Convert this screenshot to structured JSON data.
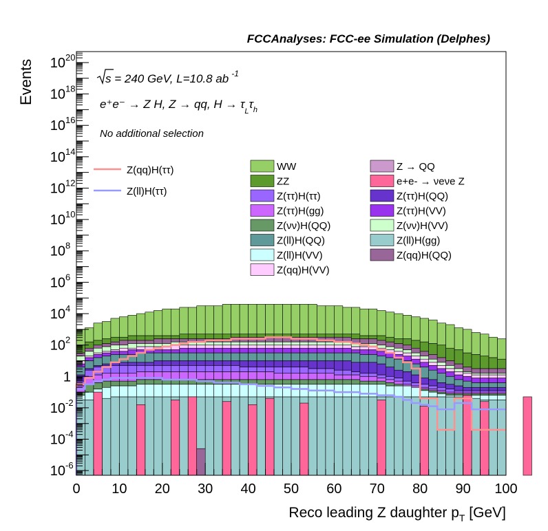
{
  "header": {
    "title": "FCCAnalyses: FCC-ee Simulation (Delphes)"
  },
  "annotations": {
    "sqrt_s": "s",
    "energy_lumi": " = 240 GeV, L=10.8 ab",
    "lumi_exp": "-1",
    "process": "e⁺e⁻ → Z H, Z → qq, H → τ",
    "process_sub_L": "L",
    "process_tau2": "τ",
    "process_sub_h": "h",
    "selection": "No additional selection"
  },
  "chart_data": {
    "type": "bar",
    "xlabel": "Reco leading Z daughter p",
    "xlabel_sub": "T",
    "xlabel_unit": " [GeV]",
    "ylabel": "Events",
    "xlim": [
      0,
      100
    ],
    "ylim_log10": [
      -6.3,
      20.7
    ],
    "yscale": "log",
    "x_ticks": [
      "0",
      "10",
      "20",
      "30",
      "40",
      "50",
      "60",
      "70",
      "80",
      "90",
      "100"
    ],
    "y_tick_labels": [
      {
        "base": "10",
        "exp": "-6",
        "value": -6
      },
      {
        "base": "10",
        "exp": "-4",
        "value": -4
      },
      {
        "base": "10",
        "exp": "-2",
        "value": -2
      },
      {
        "base": "1",
        "exp": "",
        "value": 0
      },
      {
        "base": "10",
        "exp": "2",
        "value": 2
      },
      {
        "base": "10",
        "exp": "4",
        "value": 4
      },
      {
        "base": "10",
        "exp": "6",
        "value": 6
      },
      {
        "base": "10",
        "exp": "8",
        "value": 8
      },
      {
        "base": "10",
        "exp": "10",
        "value": 10
      },
      {
        "base": "10",
        "exp": "12",
        "value": 12
      },
      {
        "base": "10",
        "exp": "14",
        "value": 14
      },
      {
        "base": "10",
        "exp": "16",
        "value": 16
      },
      {
        "base": "10",
        "exp": "18",
        "value": 18
      },
      {
        "base": "10",
        "exp": "20",
        "value": 20
      }
    ],
    "bin_width": 2,
    "stacked_log10_boundaries": {
      "Z(ll)H(gg)": [
        -1.5,
        -1.5,
        -1.4,
        -1.4,
        -1.3,
        -1.3,
        -1.3,
        -1.3,
        -1.3,
        -1.3,
        -1.3,
        -1.3,
        -1.3,
        -1.3,
        -1.3,
        -1.3,
        -1.3,
        -1.3,
        -1.3,
        -1.3,
        -1.3,
        -1.3,
        -1.3,
        -1.3,
        -1.3,
        -1.3,
        -1.3,
        -1.3,
        -1.3,
        -1.3,
        -1.3,
        -1.3,
        -1.3,
        -1.3,
        -1.3,
        -1.3,
        -1.3,
        -1.3,
        -1.3,
        -1.3,
        -1.3,
        -1.3,
        -1.3,
        -1.3,
        -1.3,
        -1.4,
        -1.4,
        -1.5,
        -1.5,
        -1.5
      ],
      "Z(ll)H(VV)": [
        -1.2,
        -1.0,
        -0.8,
        -0.7,
        -0.6,
        -0.6,
        -0.6,
        -0.5,
        -0.5,
        -0.5,
        -0.5,
        -0.5,
        -0.5,
        -0.5,
        -0.5,
        -0.5,
        -0.5,
        -0.5,
        -0.5,
        -0.5,
        -0.5,
        -0.5,
        -0.5,
        -0.5,
        -0.5,
        -0.5,
        -0.5,
        -0.5,
        -0.5,
        -0.5,
        -0.5,
        -0.5,
        -0.5,
        -0.5,
        -0.5,
        -0.5,
        -0.6,
        -0.6,
        -0.6,
        -0.7,
        -0.9,
        -1.0,
        -1.1,
        -1.2,
        -1.2,
        -1.2,
        -1.2,
        -1.2,
        -1.2,
        -1.2
      ],
      "Z(νν)H(QQ)": [
        -1.0,
        -0.5,
        -0.4,
        -0.3,
        -0.3,
        -0.3,
        -0.3,
        -0.2,
        -0.2,
        -0.2,
        -0.2,
        -0.2,
        -0.2,
        -0.2,
        -0.2,
        -0.2,
        -0.2,
        -0.2,
        -0.2,
        -0.2,
        -0.2,
        -0.2,
        -0.2,
        -0.2,
        -0.2,
        -0.2,
        -0.2,
        -0.2,
        -0.2,
        -0.2,
        -0.2,
        -0.2,
        -0.2,
        -0.3,
        -0.3,
        -0.3,
        -0.4,
        -0.5,
        -0.6,
        -0.7,
        -0.8,
        -0.9,
        -1.0,
        -1.1,
        -1.1,
        -1.1,
        -1.1,
        -1.1,
        -1.1,
        -1.1
      ],
      "Z(ττ)H(gg)": [
        -0.6,
        0.0,
        0.1,
        0.2,
        0.2,
        0.2,
        0.2,
        0.3,
        0.3,
        0.3,
        0.3,
        0.3,
        0.3,
        0.3,
        0.3,
        0.3,
        0.3,
        0.3,
        0.3,
        0.3,
        0.3,
        0.3,
        0.3,
        0.2,
        0.2,
        0.2,
        0.2,
        0.2,
        0.2,
        0.2,
        0.1,
        0.1,
        0.1,
        0.0,
        0.0,
        -0.1,
        -0.2,
        -0.3,
        -0.5,
        -0.6,
        -0.7,
        -0.8,
        -0.9,
        -1.0,
        -1.0,
        -1.0,
        -1.0,
        -1.0,
        -1.0,
        -1.0
      ],
      "Z(ττ)H(ττ)": [
        -0.3,
        0.4,
        0.6,
        0.7,
        0.7,
        0.7,
        0.7,
        0.7,
        0.7,
        0.7,
        0.7,
        0.7,
        0.7,
        0.7,
        0.7,
        0.7,
        0.7,
        0.7,
        0.7,
        0.6,
        0.6,
        0.6,
        0.6,
        0.6,
        0.6,
        0.6,
        0.6,
        0.5,
        0.5,
        0.5,
        0.4,
        0.4,
        0.3,
        0.2,
        0.2,
        0.1,
        0.0,
        -0.1,
        -0.3,
        -0.4,
        -0.5,
        -0.6,
        -0.7,
        -0.8,
        -0.9,
        -0.9,
        -0.9,
        -0.9,
        -0.9,
        -0.9
      ],
      "Z(ττ)H(QQ)": [
        0.1,
        0.5,
        0.7,
        0.8,
        0.9,
        0.9,
        0.9,
        0.9,
        0.9,
        1.0,
        1.0,
        1.0,
        1.0,
        1.0,
        1.0,
        1.0,
        1.0,
        1.0,
        1.0,
        1.0,
        1.0,
        1.0,
        1.0,
        1.0,
        1.0,
        1.0,
        1.0,
        1.0,
        1.0,
        1.0,
        1.0,
        1.0,
        0.9,
        0.9,
        0.9,
        0.8,
        0.6,
        0.4,
        0.3,
        0.1,
        -0.1,
        -0.2,
        -0.4,
        -0.5,
        -0.6,
        -0.7,
        -0.7,
        -0.7,
        -0.7,
        -0.7
      ],
      "Z(ll)H(QQ)": [
        0.6,
        1.0,
        1.2,
        1.3,
        1.4,
        1.4,
        1.4,
        1.5,
        1.5,
        1.5,
        1.5,
        1.5,
        1.5,
        1.5,
        1.5,
        1.5,
        1.5,
        1.5,
        1.5,
        1.5,
        1.5,
        1.5,
        1.5,
        1.5,
        1.5,
        1.5,
        1.5,
        1.5,
        1.5,
        1.5,
        1.5,
        1.5,
        1.5,
        1.4,
        1.4,
        1.3,
        1.2,
        1.1,
        1.0,
        0.8,
        0.6,
        0.4,
        0.2,
        0.0,
        -0.2,
        -0.3,
        -0.4,
        -0.4,
        -0.4,
        -0.4
      ],
      "Z(ττ)H(VV)": [
        0.8,
        1.2,
        1.4,
        1.5,
        1.6,
        1.6,
        1.7,
        1.7,
        1.7,
        1.7,
        1.7,
        1.7,
        1.8,
        1.8,
        1.8,
        1.8,
        1.8,
        1.8,
        1.8,
        1.8,
        1.8,
        1.8,
        1.8,
        1.8,
        1.8,
        1.8,
        1.8,
        1.8,
        1.8,
        1.8,
        1.8,
        1.8,
        1.7,
        1.7,
        1.7,
        1.6,
        1.5,
        1.4,
        1.3,
        1.1,
        0.9,
        0.7,
        0.5,
        0.3,
        0.1,
        0.0,
        -0.1,
        -0.1,
        -0.1,
        -0.1
      ],
      "Z(qq)H(VV)": [
        1.0,
        1.3,
        1.5,
        1.6,
        1.7,
        1.8,
        1.8,
        1.9,
        1.9,
        1.9,
        1.9,
        2.0,
        2.0,
        2.0,
        2.0,
        2.0,
        2.0,
        2.0,
        2.0,
        2.0,
        2.0,
        2.0,
        2.0,
        2.0,
        2.0,
        2.0,
        2.0,
        2.0,
        2.0,
        2.0,
        2.0,
        2.0,
        1.9,
        1.9,
        1.9,
        1.8,
        1.7,
        1.6,
        1.5,
        1.3,
        1.1,
        0.9,
        0.7,
        0.5,
        0.3,
        0.2,
        0.1,
        0.1,
        0.1,
        0.1
      ],
      "Z(νν)H(VV)": [
        1.3,
        1.6,
        1.8,
        1.9,
        2.0,
        2.0,
        2.1,
        2.1,
        2.1,
        2.1,
        2.1,
        2.2,
        2.2,
        2.2,
        2.2,
        2.2,
        2.2,
        2.2,
        2.2,
        2.2,
        2.2,
        2.2,
        2.2,
        2.2,
        2.2,
        2.2,
        2.2,
        2.2,
        2.2,
        2.2,
        2.2,
        2.2,
        2.1,
        2.1,
        2.1,
        2.0,
        1.9,
        1.8,
        1.7,
        1.5,
        1.3,
        1.1,
        0.9,
        0.7,
        0.5,
        0.3,
        0.2,
        0.2,
        0.2,
        0.2
      ],
      "Z(qq)H(QQ)": [
        1.5,
        1.8,
        2.0,
        2.1,
        2.2,
        2.3,
        2.3,
        2.3,
        2.3,
        2.4,
        2.4,
        2.4,
        2.4,
        2.4,
        2.4,
        2.4,
        2.4,
        2.4,
        2.5,
        2.5,
        2.5,
        2.5,
        2.5,
        2.5,
        2.5,
        2.5,
        2.5,
        2.5,
        2.5,
        2.5,
        2.5,
        2.5,
        2.4,
        2.4,
        2.4,
        2.3,
        2.2,
        2.1,
        2.0,
        1.8,
        1.6,
        1.4,
        1.2,
        1.0,
        0.8,
        0.6,
        0.5,
        0.5,
        0.5,
        0.5
      ],
      "ZZ": [
        2.0,
        2.2,
        2.3,
        2.4,
        2.5,
        2.5,
        2.6,
        2.6,
        2.6,
        2.6,
        2.6,
        2.6,
        2.7,
        2.7,
        2.7,
        2.7,
        2.7,
        2.7,
        2.7,
        2.7,
        2.7,
        2.7,
        2.7,
        2.7,
        2.7,
        2.7,
        2.7,
        2.7,
        2.7,
        2.7,
        2.7,
        2.7,
        2.7,
        2.6,
        2.6,
        2.6,
        2.5,
        2.4,
        2.4,
        2.3,
        2.2,
        2.1,
        2.0,
        1.8,
        1.7,
        1.5,
        1.4,
        1.3,
        1.2,
        1.1
      ],
      "WW": [
        3.0,
        3.1,
        3.4,
        3.5,
        3.7,
        3.8,
        3.9,
        4.0,
        4.1,
        4.2,
        4.3,
        4.3,
        4.4,
        4.4,
        4.5,
        4.5,
        4.5,
        4.6,
        4.6,
        4.6,
        4.6,
        4.6,
        4.6,
        4.6,
        4.6,
        4.6,
        4.6,
        4.6,
        4.5,
        4.5,
        4.5,
        4.4,
        4.4,
        4.3,
        4.3,
        4.2,
        4.1,
        4.0,
        3.9,
        3.8,
        3.7,
        3.6,
        3.4,
        3.3,
        3.1,
        3.0,
        2.8,
        2.7,
        2.5,
        2.4
      ]
    },
    "spiky_series": {
      "e+e- → νeνe Z": {
        "bins": [
          2,
          7,
          11,
          13,
          17,
          20,
          22,
          26,
          35,
          40,
          45,
          47,
          52,
          57,
          60,
          62,
          70,
          71,
          74,
          76,
          79
        ],
        "log10": [
          -1,
          -1.8,
          -1.5,
          -1.3,
          -1.6,
          -1.8,
          -1.4,
          -1.7,
          -1.5,
          -1.9,
          -1.2,
          -1.6,
          -1.3,
          -1.7,
          -1.5,
          -1.8,
          -1.9,
          -1.4,
          -1.6,
          -1.7,
          -2
        ]
      },
      "Z(qq)H(QQ) small": {
        "bins": [
          14
        ],
        "log10": [
          -4.6
        ]
      }
    },
    "overlay_series": [
      {
        "name": "Z(qq)H(ττ)",
        "color": "#ff9090",
        "log10": [
          -0.5,
          -0.1,
          0.3,
          0.6,
          0.9,
          1.1,
          1.3,
          1.5,
          1.7,
          1.8,
          1.9,
          2.0,
          2.1,
          2.2,
          2.2,
          2.3,
          2.3,
          2.3,
          2.4,
          2.4,
          2.4,
          2.4,
          2.5,
          2.5,
          2.5,
          2.4,
          2.4,
          2.4,
          2.3,
          2.3,
          2.2,
          2.2,
          2.1,
          2.0,
          1.9,
          1.7,
          1.5,
          1.2,
          0.9,
          0.5,
          -1.4,
          -1.4,
          -3.4,
          -3.4,
          -1.4,
          -1.4,
          -3.4,
          -3.4,
          -3.4,
          -3.4
        ]
      },
      {
        "name": "Z(ll)H(ττ)",
        "color": "#9999ff",
        "log10": [
          -0.8,
          -0.5,
          -0.3,
          -0.2,
          -0.1,
          -0.1,
          -0.1,
          -0.1,
          -0.1,
          -0.1,
          -0.2,
          -0.2,
          -0.2,
          -0.2,
          -0.3,
          -0.3,
          -0.4,
          -0.4,
          -0.4,
          -0.5,
          -0.5,
          -0.6,
          -0.6,
          -0.7,
          -0.7,
          -0.8,
          -0.8,
          -0.9,
          -0.9,
          -0.9,
          -1.0,
          -1.0,
          -1.0,
          -1.1,
          -1.1,
          -1.2,
          -1.2,
          -1.3,
          -1.5,
          -1.7,
          -1.8,
          -1.9,
          -2.1,
          -2.1,
          -1.7,
          -1.7,
          -2.1,
          -2.1,
          -2.1,
          -2.1
        ]
      }
    ],
    "legend": {
      "overlay": [
        {
          "label": "Z(qq)H(ττ)",
          "color": "#ff9090"
        },
        {
          "label": "Z(ll)H(ττ)",
          "color": "#9999ff"
        }
      ],
      "stack_col1": [
        {
          "label": "WW",
          "color": "#95cf65"
        },
        {
          "label": "ZZ",
          "color": "#5c9a2e"
        },
        {
          "label": "Z(ττ)H(ττ)",
          "color": "#9966ff"
        },
        {
          "label": "Z(ττ)H(gg)",
          "color": "#cc66ff"
        },
        {
          "label": "Z(νν)H(QQ)",
          "color": "#669966"
        },
        {
          "label": "Z(ll)H(QQ)",
          "color": "#5f9999"
        },
        {
          "label": "Z(ll)H(VV)",
          "color": "#ccffff"
        },
        {
          "label": "Z(qq)H(VV)",
          "color": "#ffccff"
        }
      ],
      "stack_col2": [
        {
          "label": "Z → QQ",
          "color": "#cc99cc"
        },
        {
          "label": "e+e- → νeνe Z",
          "color": "#ff6699",
          "rich": true
        },
        {
          "label": "Z(ττ)H(QQ)",
          "color": "#6633cc"
        },
        {
          "label": "Z(ττ)H(VV)",
          "color": "#9933ee"
        },
        {
          "label": "Z(νν)H(VV)",
          "color": "#ccffcc"
        },
        {
          "label": "Z(ll)H(gg)",
          "color": "#99cccc"
        },
        {
          "label": "Z(qq)H(QQ)",
          "color": "#996699"
        }
      ]
    },
    "colors": {
      "WW": "#95cf65",
      "ZZ": "#5c9a2e",
      "Z(qq)H(QQ)": "#996699",
      "Z(νν)H(VV)": "#ccffcc",
      "Z(qq)H(VV)": "#ffccff",
      "Z(ττ)H(VV)": "#9933ee",
      "Z(ll)H(QQ)": "#5f9999",
      "Z(ττ)H(QQ)": "#6633cc",
      "Z(ττ)H(ττ)": "#9966ff",
      "Z(ττ)H(gg)": "#cc66ff",
      "Z(νν)H(QQ)": "#669966",
      "Z(ll)H(VV)": "#ccffff",
      "Z(ll)H(gg)": "#99cccc",
      "e+e- → νeνe Z": "#ff6699"
    }
  }
}
